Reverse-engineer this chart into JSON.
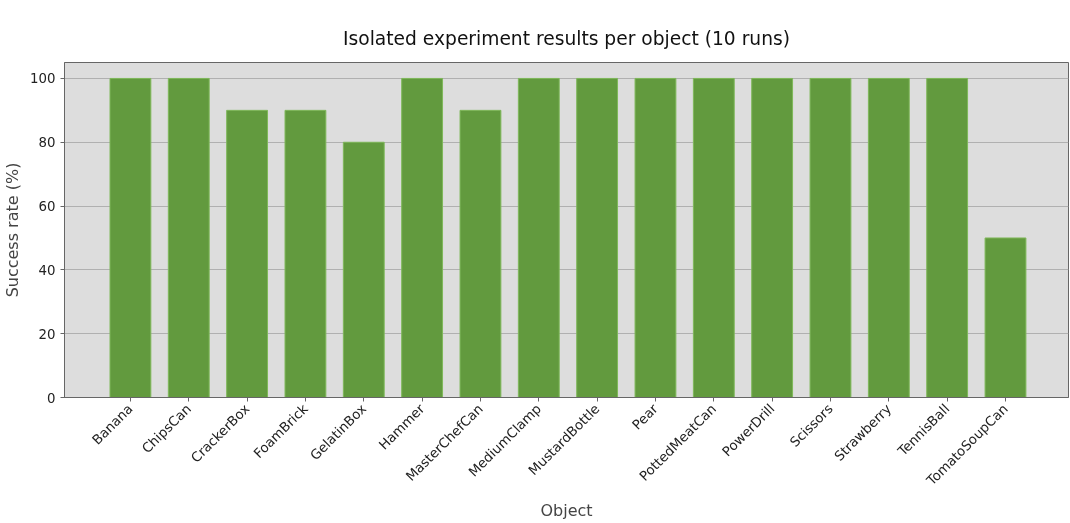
{
  "chart_data": {
    "type": "bar",
    "title": "Isolated experiment results per object (10 runs)",
    "xlabel": "Object",
    "ylabel": "Success rate (%)",
    "categories": [
      "Banana",
      "ChipsCan",
      "CrackerBox",
      "FoamBrick",
      "GelatinBox",
      "Hammer",
      "MasterChefCan",
      "MediumClamp",
      "MustardBottle",
      "Pear",
      "PottedMeatCan",
      "PowerDrill",
      "Scissors",
      "Strawberry",
      "TennisBall",
      "TomatoSoupCan"
    ],
    "values": [
      100,
      100,
      90,
      90,
      80,
      100,
      90,
      100,
      100,
      100,
      100,
      100,
      100,
      100,
      100,
      50
    ],
    "color": "#629a3e",
    "ylim": [
      0,
      105
    ],
    "yticks": [
      0,
      20,
      40,
      60,
      80,
      100
    ],
    "grid": "y"
  }
}
